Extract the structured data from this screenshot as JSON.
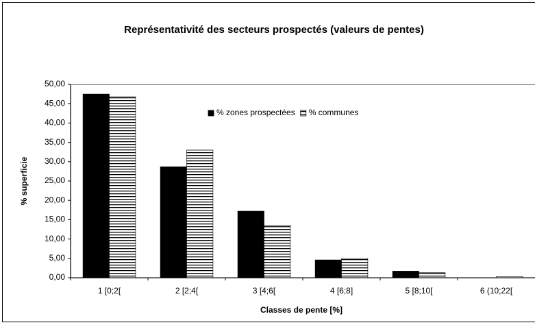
{
  "chart_data": {
    "type": "bar",
    "title": "Représentativité des secteurs prospectés (valeurs de pentes)",
    "x_label": "Classes de pente [%]",
    "y_label": "% superficie",
    "categories": [
      "1 [0;2[",
      "2 [2;4[",
      "3 [4;6[",
      "4 [6;8]",
      "5 [8;10[",
      "6 (10;22["
    ],
    "series": [
      {
        "name": "% zones prospectées",
        "color": "#000000",
        "pattern": "solid",
        "values": [
          47.5,
          28.7,
          17.2,
          4.6,
          1.7,
          0.0
        ]
      },
      {
        "name": "% communes",
        "color": "#000000",
        "pattern": "horizontal-stripes",
        "values": [
          46.8,
          33.0,
          13.6,
          5.0,
          1.3,
          0.3
        ]
      }
    ],
    "ylim": [
      0,
      50
    ],
    "yticks": [
      {
        "value": 0,
        "label": "0,00"
      },
      {
        "value": 5,
        "label": "5,00"
      },
      {
        "value": 10,
        "label": "10,00"
      },
      {
        "value": 15,
        "label": "15,00"
      },
      {
        "value": 20,
        "label": "20,00"
      },
      {
        "value": 25,
        "label": "25,00"
      },
      {
        "value": 30,
        "label": "30,00"
      },
      {
        "value": 35,
        "label": "35,00"
      },
      {
        "value": 40,
        "label": "40,00"
      },
      {
        "value": 45,
        "label": "45,00"
      },
      {
        "value": 50,
        "label": "50,00"
      }
    ],
    "legend": "top",
    "grid": false
  }
}
